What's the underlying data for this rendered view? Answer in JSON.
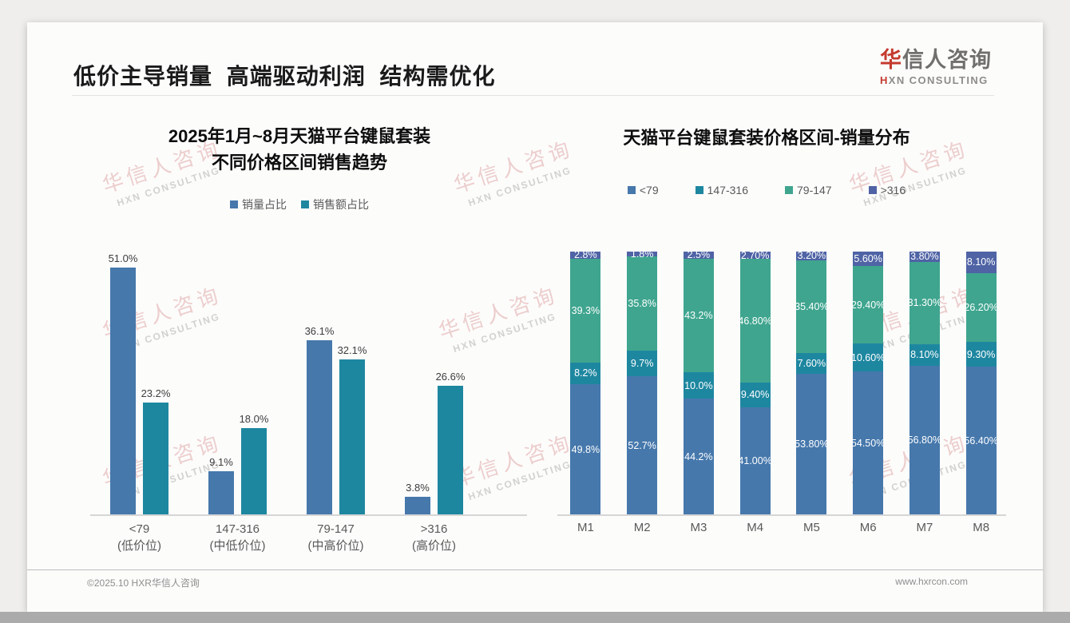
{
  "page": {
    "title": "低价主导销量 高端驱动利润 结构需优化",
    "logo": {
      "cn_red": "华",
      "cn_gray": "信人咨询",
      "en_red": "H",
      "en_gray": "XN CONSULTING"
    },
    "watermark": {
      "line1": "华信人咨询",
      "line2": "HXN CONSULTING"
    },
    "footer": {
      "left": "©2025.10 HXR华信人咨询",
      "right": "www.hxrcon.com"
    }
  },
  "colors": {
    "series_blue": "#4678ac",
    "series_teal": "#1e87a0",
    "series_green": "#3fa58f",
    "series_navy": "#4f63a5",
    "title_text": "#1a1a1a",
    "brand_red": "#c43b2e",
    "axis_gray": "#d6d6d6",
    "label_gray": "#595959"
  },
  "chart_data": [
    {
      "type": "bar",
      "title": "2025年1月~8月天猫平台键鼠套装 不同价格区间销售趋势",
      "title_lines": [
        "2025年1月~8月天猫平台键鼠套装",
        "不同价格区间销售趋势"
      ],
      "categories": [
        "<79",
        "147-316",
        "79-147",
        ">316"
      ],
      "category_sublabels": [
        "(低价位)",
        "(中低价位)",
        "(中高价位)",
        "(高价位)"
      ],
      "series": [
        {
          "name": "销量占比",
          "color": "#4678ac",
          "values": [
            51.0,
            9.1,
            36.1,
            3.8
          ],
          "labels": [
            "51.0%",
            "9.1%",
            "36.1%",
            "3.8%"
          ]
        },
        {
          "name": "销售额占比",
          "color": "#1e87a0",
          "values": [
            23.2,
            18.0,
            32.1,
            26.6
          ],
          "labels": [
            "23.2%",
            "18.0%",
            "32.1%",
            "26.6%"
          ]
        }
      ],
      "unit": "%",
      "ylim": [
        0,
        55
      ],
      "grid": false,
      "legend_position": "top"
    },
    {
      "type": "stacked-bar",
      "title": "天猫平台键鼠套装价格区间-销量分布",
      "categories": [
        "M1",
        "M2",
        "M3",
        "M4",
        "M5",
        "M6",
        "M7",
        "M8"
      ],
      "stack_order": "bottom-to-top",
      "series": [
        {
          "name": "<79",
          "color": "#4678ac",
          "values": [
            49.8,
            52.7,
            44.2,
            41.0,
            53.8,
            54.5,
            56.8,
            56.4
          ],
          "labels": [
            "49.8%",
            "52.7%",
            "44.2%",
            "41.00%",
            "53.80%",
            "54.50%",
            "56.80%",
            "56.40%"
          ]
        },
        {
          "name": "147-316",
          "color": "#1e87a0",
          "values": [
            8.2,
            9.7,
            10.0,
            9.4,
            7.6,
            10.6,
            8.1,
            9.3
          ],
          "labels": [
            "8.2%",
            "9.7%",
            "10.0%",
            "9.40%",
            "7.60%",
            "10.60%",
            "8.10%",
            "9.30%"
          ]
        },
        {
          "name": "79-147",
          "color": "#3fa58f",
          "values": [
            39.3,
            35.8,
            43.2,
            46.8,
            35.4,
            29.4,
            31.3,
            26.2
          ],
          "labels": [
            "39.3%",
            "35.8%",
            "43.2%",
            "46.80%",
            "35.40%",
            "29.40%",
            "31.30%",
            "26.20%"
          ]
        },
        {
          "name": ">316",
          "color": "#4f63a5",
          "values": [
            2.8,
            1.8,
            2.5,
            2.7,
            3.2,
            5.6,
            3.8,
            8.1
          ],
          "labels": [
            "2.8%",
            "1.8%",
            "2.5%",
            "2.70%",
            "3.20%",
            "5.60%",
            "3.80%",
            "8.10%"
          ]
        }
      ],
      "unit": "%",
      "ylim": [
        0,
        100
      ],
      "grid": false,
      "legend_position": "top"
    }
  ]
}
